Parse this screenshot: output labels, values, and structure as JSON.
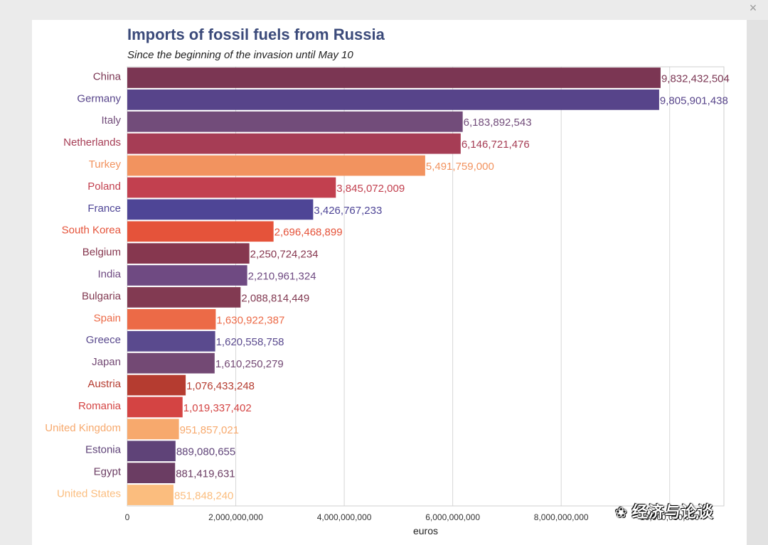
{
  "window": {
    "close_glyph": "×"
  },
  "chart_data": {
    "type": "bar",
    "orientation": "horizontal",
    "title": "Imports of fossil fuels from Russia",
    "subtitle": "Since the beginning of the invasion until May 10",
    "xlabel": "euros",
    "xlim": [
      0,
      11000000000
    ],
    "grid": true,
    "x_ticks": [
      0,
      2000000000,
      4000000000,
      6000000000,
      8000000000,
      10000000000
    ],
    "x_tick_labels": [
      "0",
      "2,000,000,000",
      "4,000,000,000",
      "6,000,000,000",
      "8,000,000,000",
      "10,000,000,000"
    ],
    "categories": [
      "China",
      "Germany",
      "Italy",
      "Netherlands",
      "Turkey",
      "Poland",
      "France",
      "South Korea",
      "Belgium",
      "India",
      "Bulgaria",
      "Spain",
      "Greece",
      "Japan",
      "Austria",
      "Romania",
      "United Kingdom",
      "Estonia",
      "Egypt",
      "United States"
    ],
    "values": [
      9832432504,
      9805901438,
      6183892543,
      6146721476,
      5491759000,
      3845072009,
      3426767233,
      2696468899,
      2250724234,
      2210961324,
      2088814449,
      1630922387,
      1620558758,
      1610250279,
      1076433248,
      1019337402,
      951857021,
      889080655,
      881419631,
      851848240
    ],
    "value_labels": [
      "9,832,432,504",
      "9,805,901,438",
      "6,183,892,543",
      "6,146,721,476",
      "5,491,759,000",
      "3,845,072,009",
      "3,426,767,233",
      "2,696,468,899",
      "2,250,724,234",
      "2,210,961,324",
      "2,088,814,449",
      "1,630,922,387",
      "1,620,558,758",
      "1,610,250,279",
      "1,076,433,248",
      "1,019,337,402",
      "951,857,021",
      "889,080,655",
      "881,419,631",
      "851,848,240"
    ],
    "colors": [
      "#7b3653",
      "#57448a",
      "#724c7a",
      "#a63d55",
      "#f2935f",
      "#c2404f",
      "#4e4596",
      "#e5533a",
      "#86374f",
      "#6f4a82",
      "#823a52",
      "#ec6a47",
      "#5a4a8e",
      "#734974",
      "#b53c30",
      "#d44443",
      "#f7a96d",
      "#5f4378",
      "#6b3d63",
      "#fbbd7e"
    ]
  },
  "watermark": {
    "icon": "wechat-icon",
    "text": "经济与论谈"
  }
}
